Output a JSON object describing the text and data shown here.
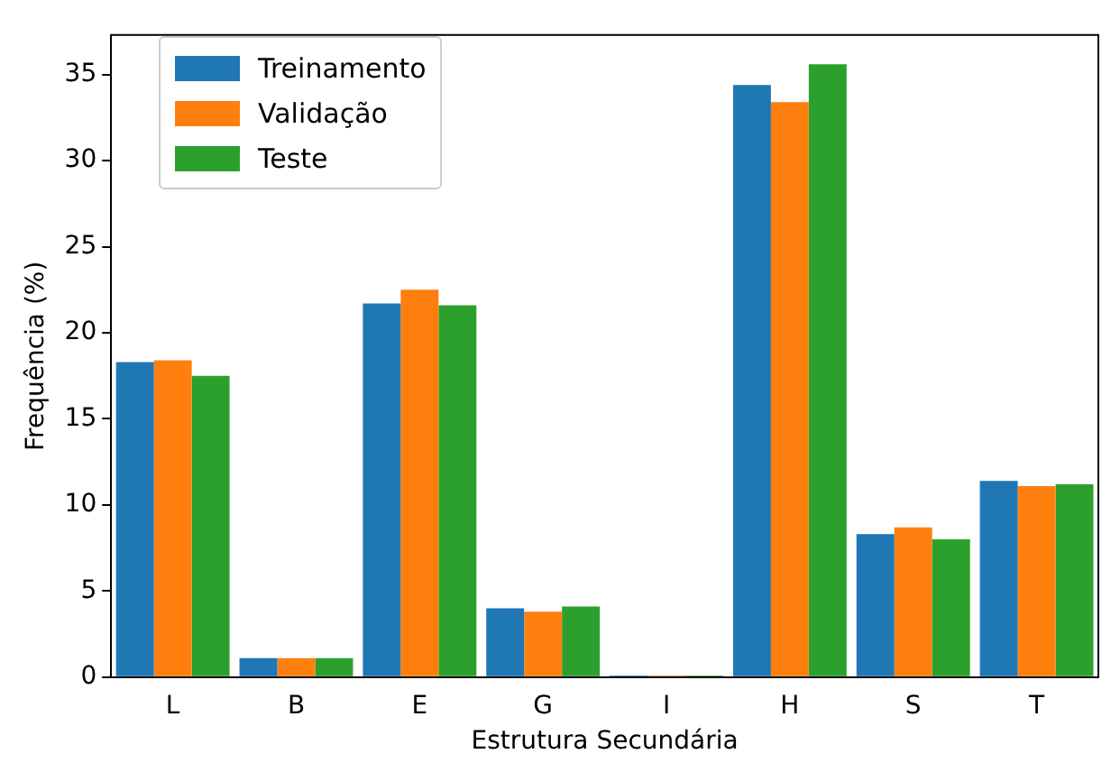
{
  "chart_data": {
    "type": "bar",
    "xlabel": "Estrutura Secundária",
    "ylabel": "Frequência (%)",
    "categories": [
      "L",
      "B",
      "E",
      "G",
      "I",
      "H",
      "S",
      "T"
    ],
    "series": [
      {
        "name": "Treinamento",
        "color": "#1f77b4",
        "values": [
          18.3,
          1.1,
          21.7,
          4.0,
          0.1,
          34.4,
          8.3,
          11.4
        ]
      },
      {
        "name": "Validação",
        "color": "#ff7f0e",
        "values": [
          18.4,
          1.1,
          22.5,
          3.8,
          0.1,
          33.4,
          8.7,
          11.1
        ]
      },
      {
        "name": "Teste",
        "color": "#2ca02c",
        "values": [
          17.5,
          1.1,
          21.6,
          4.1,
          0.1,
          35.6,
          8.0,
          11.2
        ]
      }
    ],
    "ylim": [
      0,
      37.3
    ],
    "yticks": [
      0,
      5,
      10,
      15,
      20,
      25,
      30,
      35
    ],
    "grid": false,
    "legend": "top left"
  }
}
